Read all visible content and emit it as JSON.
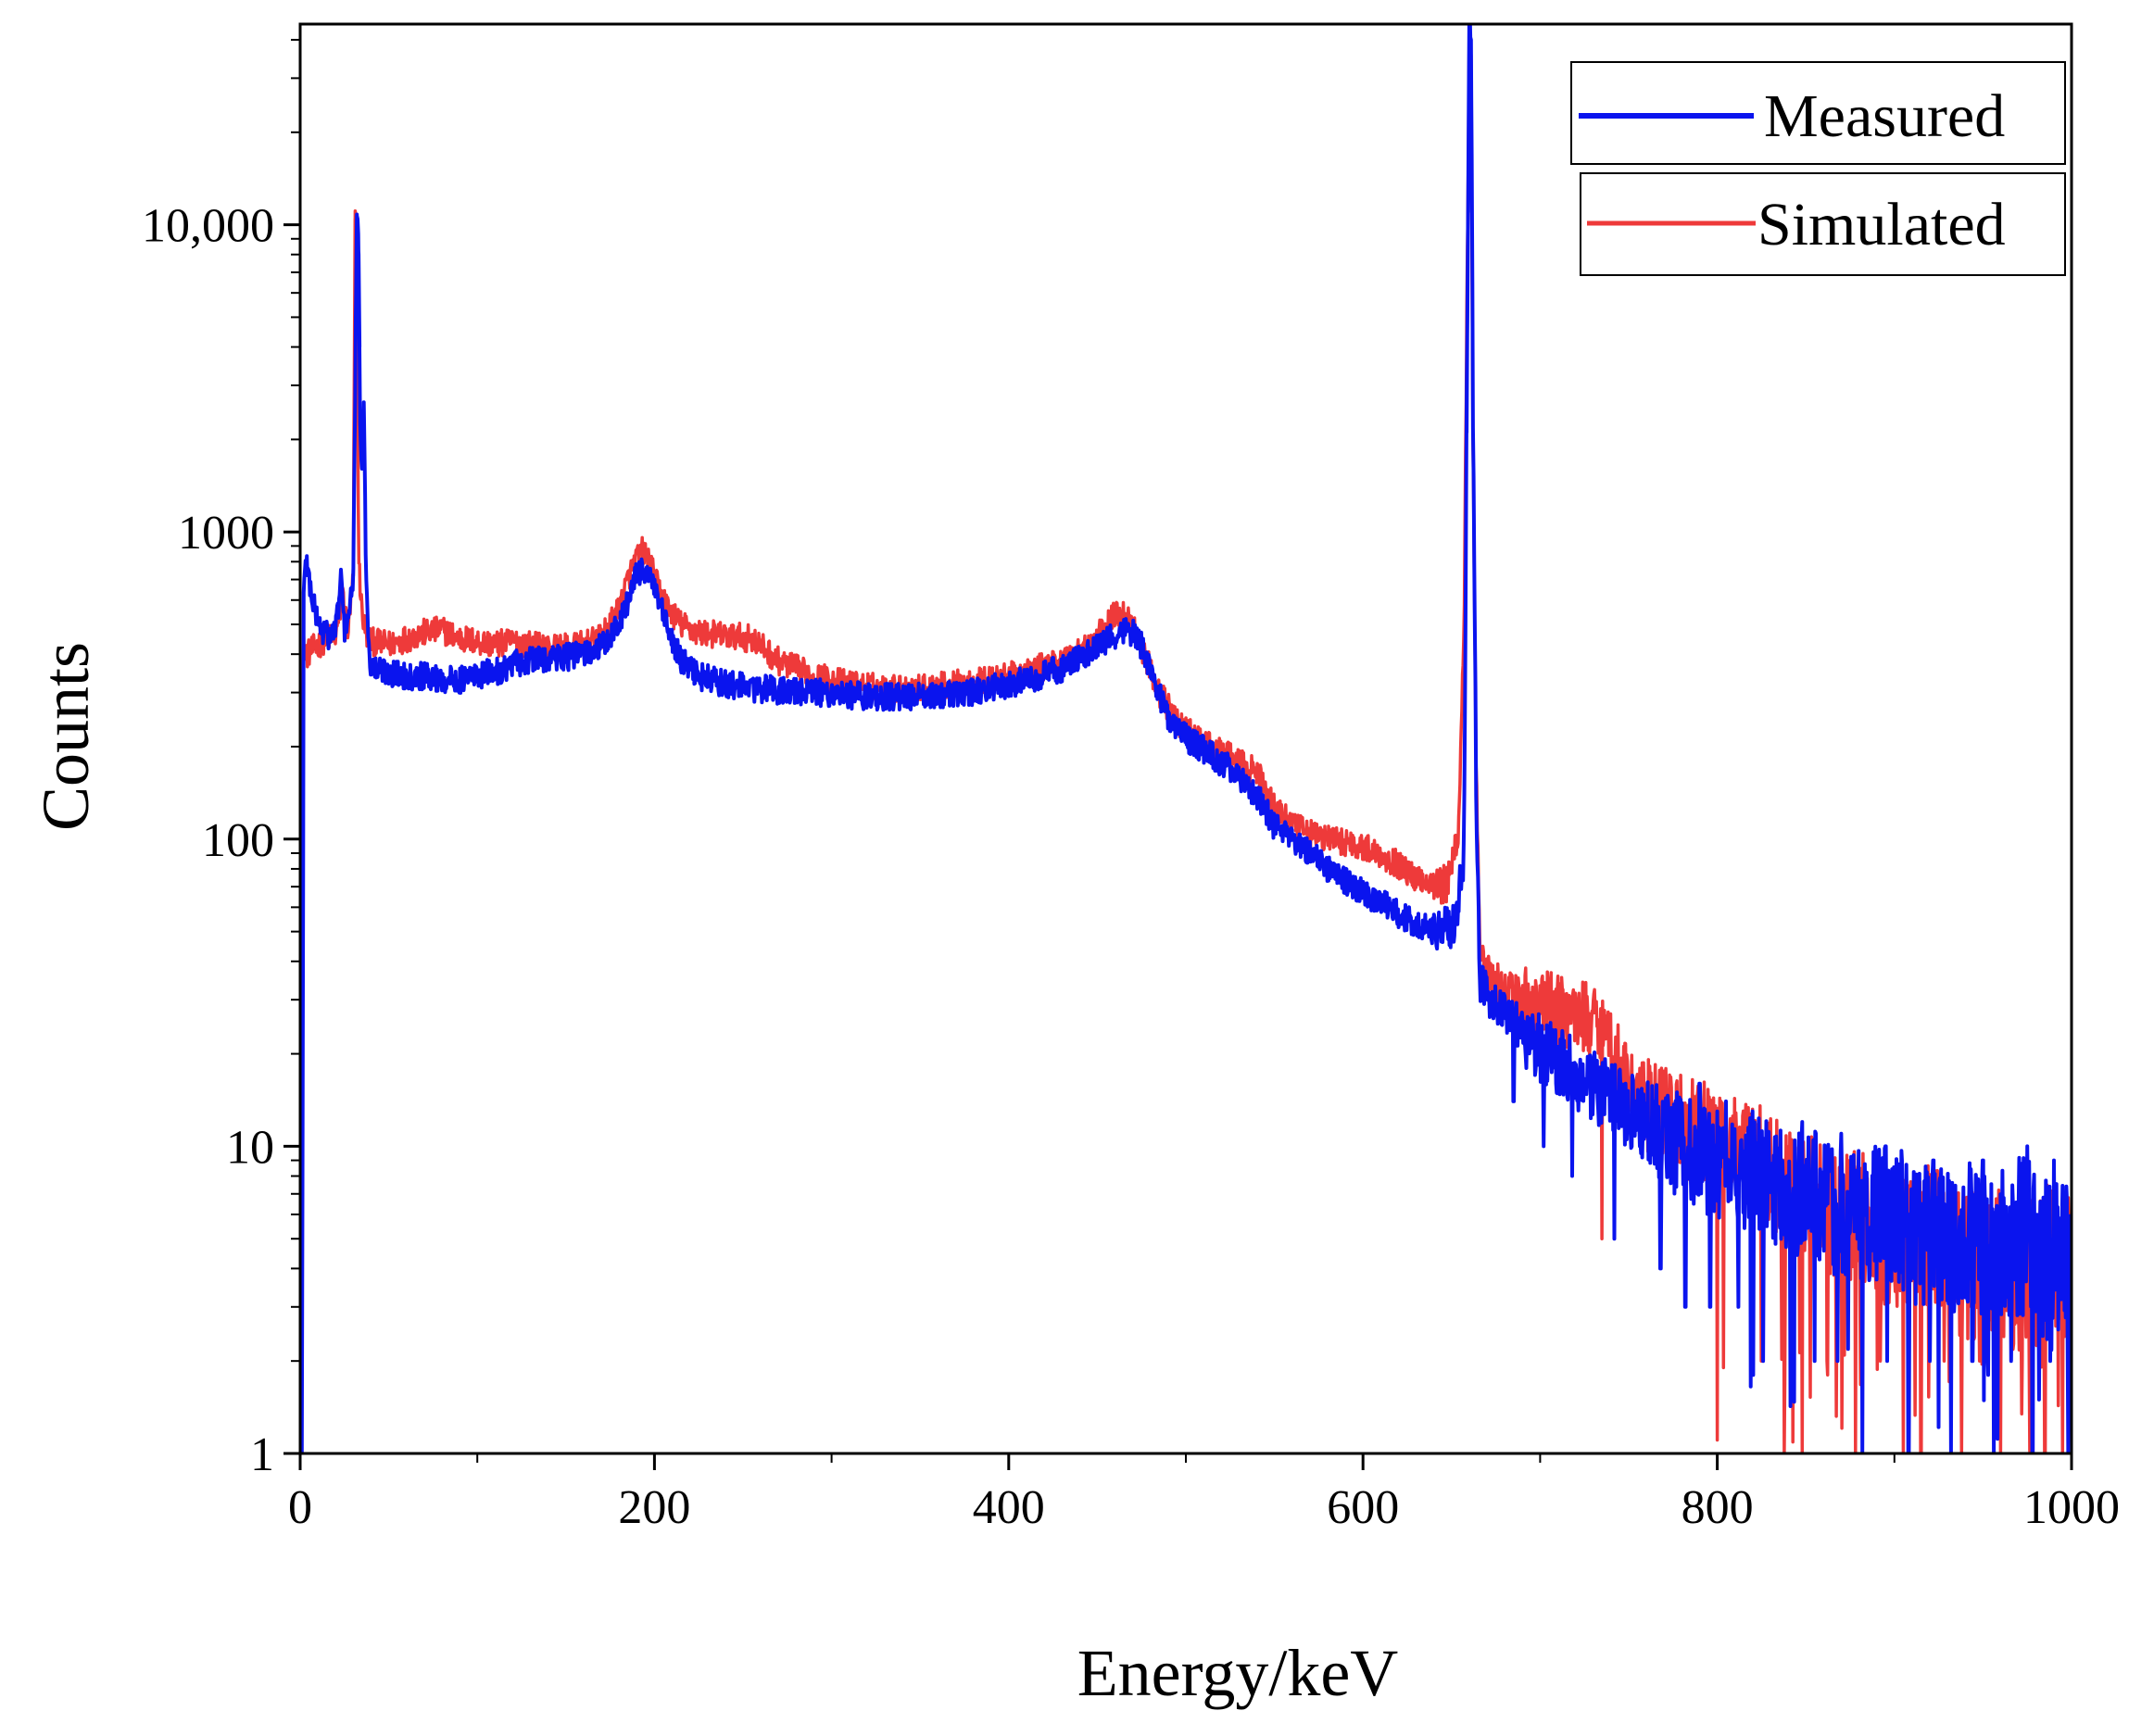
{
  "chart_data": {
    "type": "line",
    "title": "",
    "xlabel": "Energy/keV",
    "ylabel": "Counts",
    "xlim": [
      0,
      1000
    ],
    "ylim": [
      1,
      45000
    ],
    "yscale": "log",
    "grid": false,
    "legend_position": "top-right",
    "x_ticks": [
      {
        "value": 0,
        "label": "0"
      },
      {
        "value": 200,
        "label": "200"
      },
      {
        "value": 400,
        "label": "400"
      },
      {
        "value": 600,
        "label": "600"
      },
      {
        "value": 800,
        "label": "800"
      },
      {
        "value": 1000,
        "label": "1000"
      }
    ],
    "y_ticks": [
      {
        "value": 1,
        "label": "1"
      },
      {
        "value": 10,
        "label": "10"
      },
      {
        "value": 100,
        "label": "100"
      },
      {
        "value": 1000,
        "label": "1000"
      },
      {
        "value": 10000,
        "label": "10,000"
      }
    ],
    "series": [
      {
        "name": "Simulated",
        "color": "#ee3a3a",
        "points": [
          [
            1,
            160
          ],
          [
            2,
            420
          ],
          [
            4,
            400
          ],
          [
            8,
            420
          ],
          [
            15,
            450
          ],
          [
            20,
            460
          ],
          [
            24,
            620
          ],
          [
            27,
            470
          ],
          [
            30,
            700
          ],
          [
            31,
            10500
          ],
          [
            32,
            9500
          ],
          [
            33,
            800
          ],
          [
            35,
            540
          ],
          [
            37,
            470
          ],
          [
            40,
            440
          ],
          [
            50,
            430
          ],
          [
            60,
            450
          ],
          [
            70,
            470
          ],
          [
            80,
            480
          ],
          [
            90,
            450
          ],
          [
            100,
            440
          ],
          [
            110,
            430
          ],
          [
            120,
            440
          ],
          [
            130,
            430
          ],
          [
            140,
            420
          ],
          [
            150,
            420
          ],
          [
            160,
            430
          ],
          [
            170,
            450
          ],
          [
            180,
            560
          ],
          [
            185,
            700
          ],
          [
            190,
            820
          ],
          [
            193,
            870
          ],
          [
            197,
            800
          ],
          [
            202,
            660
          ],
          [
            208,
            560
          ],
          [
            215,
            500
          ],
          [
            225,
            470
          ],
          [
            240,
            460
          ],
          [
            255,
            450
          ],
          [
            270,
            380
          ],
          [
            290,
            340
          ],
          [
            310,
            320
          ],
          [
            330,
            310
          ],
          [
            350,
            310
          ],
          [
            370,
            320
          ],
          [
            390,
            330
          ],
          [
            410,
            350
          ],
          [
            430,
            380
          ],
          [
            445,
            430
          ],
          [
            455,
            490
          ],
          [
            460,
            540
          ],
          [
            464,
            550
          ],
          [
            468,
            520
          ],
          [
            472,
            470
          ],
          [
            478,
            380
          ],
          [
            485,
            300
          ],
          [
            495,
            240
          ],
          [
            510,
            205
          ],
          [
            525,
            185
          ],
          [
            540,
            165
          ],
          [
            550,
            130
          ],
          [
            560,
            110
          ],
          [
            575,
            102
          ],
          [
            590,
            98
          ],
          [
            605,
            92
          ],
          [
            618,
            84
          ],
          [
            628,
            76
          ],
          [
            640,
            72
          ],
          [
            648,
            70
          ],
          [
            654,
            110
          ],
          [
            657,
            500
          ],
          [
            659,
            8000
          ],
          [
            660,
            40000
          ],
          [
            661,
            36000
          ],
          [
            662,
            2000
          ],
          [
            664,
            150
          ],
          [
            666,
            40
          ],
          [
            672,
            35
          ],
          [
            690,
            30
          ],
          [
            705,
            28
          ],
          [
            720,
            27
          ],
          [
            735,
            25
          ],
          [
            750,
            16
          ],
          [
            760,
            14
          ],
          [
            775,
            12
          ],
          [
            790,
            11
          ],
          [
            805,
            10
          ],
          [
            820,
            9
          ],
          [
            835,
            8
          ],
          [
            850,
            7
          ],
          [
            865,
            6
          ],
          [
            880,
            6
          ],
          [
            895,
            5
          ],
          [
            910,
            5
          ],
          [
            925,
            5
          ],
          [
            940,
            4
          ],
          [
            955,
            4
          ],
          [
            970,
            4
          ],
          [
            985,
            4
          ],
          [
            1000,
            4
          ]
        ],
        "noise_dips": [
          [
            735,
            5
          ],
          [
            800,
            2
          ],
          [
            825,
            2
          ],
          [
            838,
            1
          ],
          [
            848,
            1
          ],
          [
            862,
            2
          ],
          [
            878,
            1
          ],
          [
            892,
            2
          ],
          [
            905,
            1
          ],
          [
            915,
            1
          ],
          [
            928,
            2
          ],
          [
            938,
            1
          ],
          [
            948,
            2
          ],
          [
            960,
            1
          ],
          [
            972,
            2
          ],
          [
            985,
            1
          ],
          [
            995,
            1
          ]
        ]
      },
      {
        "name": "Measured",
        "color": "#0a14ee",
        "points": [
          [
            1,
            1
          ],
          [
            2,
            600
          ],
          [
            3,
            850
          ],
          [
            5,
            700
          ],
          [
            8,
            560
          ],
          [
            12,
            480
          ],
          [
            16,
            460
          ],
          [
            20,
            480
          ],
          [
            22,
            600
          ],
          [
            23,
            720
          ],
          [
            25,
            480
          ],
          [
            28,
            560
          ],
          [
            30,
            700
          ],
          [
            32,
            10800
          ],
          [
            33,
            8000
          ],
          [
            34,
            2000
          ],
          [
            35,
            1400
          ],
          [
            36,
            2900
          ],
          [
            37,
            900
          ],
          [
            38,
            500
          ],
          [
            40,
            360
          ],
          [
            50,
            350
          ],
          [
            60,
            340
          ],
          [
            70,
            340
          ],
          [
            80,
            330
          ],
          [
            90,
            330
          ],
          [
            100,
            340
          ],
          [
            110,
            350
          ],
          [
            120,
            370
          ],
          [
            130,
            380
          ],
          [
            140,
            390
          ],
          [
            150,
            390
          ],
          [
            160,
            400
          ],
          [
            170,
            420
          ],
          [
            180,
            500
          ],
          [
            185,
            600
          ],
          [
            190,
            720
          ],
          [
            194,
            760
          ],
          [
            197,
            720
          ],
          [
            202,
            600
          ],
          [
            208,
            470
          ],
          [
            215,
            380
          ],
          [
            225,
            340
          ],
          [
            240,
            320
          ],
          [
            255,
            310
          ],
          [
            270,
            305
          ],
          [
            290,
            300
          ],
          [
            310,
            295
          ],
          [
            330,
            290
          ],
          [
            350,
            290
          ],
          [
            370,
            295
          ],
          [
            390,
            310
          ],
          [
            410,
            330
          ],
          [
            430,
            360
          ],
          [
            445,
            400
          ],
          [
            455,
            440
          ],
          [
            462,
            470
          ],
          [
            466,
            480
          ],
          [
            470,
            470
          ],
          [
            476,
            420
          ],
          [
            482,
            330
          ],
          [
            490,
            250
          ],
          [
            500,
            215
          ],
          [
            510,
            195
          ],
          [
            525,
            170
          ],
          [
            540,
            140
          ],
          [
            550,
            110
          ],
          [
            565,
            95
          ],
          [
            580,
            80
          ],
          [
            595,
            70
          ],
          [
            610,
            62
          ],
          [
            625,
            55
          ],
          [
            640,
            50
          ],
          [
            652,
            52
          ],
          [
            657,
            90
          ],
          [
            659,
            6000
          ],
          [
            660,
            42000
          ],
          [
            661,
            40000
          ],
          [
            662,
            3000
          ],
          [
            664,
            120
          ],
          [
            666,
            35
          ],
          [
            672,
            30
          ],
          [
            690,
            24
          ],
          [
            705,
            20
          ],
          [
            720,
            17
          ],
          [
            735,
            15
          ],
          [
            750,
            13
          ],
          [
            765,
            11
          ],
          [
            780,
            10
          ],
          [
            795,
            9
          ],
          [
            810,
            8
          ],
          [
            825,
            8
          ],
          [
            840,
            7
          ],
          [
            855,
            7
          ],
          [
            870,
            6
          ],
          [
            885,
            6
          ],
          [
            900,
            6
          ],
          [
            915,
            5
          ],
          [
            930,
            5
          ],
          [
            945,
            5
          ],
          [
            960,
            5
          ],
          [
            975,
            5
          ],
          [
            990,
            4
          ],
          [
            1000,
            4
          ]
        ],
        "noise_dips": [
          [
            685,
            14
          ],
          [
            702,
            10
          ],
          [
            718,
            8
          ],
          [
            742,
            5
          ],
          [
            752,
            2
          ],
          [
            768,
            4
          ],
          [
            782,
            3
          ],
          [
            796,
            3
          ],
          [
            812,
            3
          ],
          [
            826,
            2
          ],
          [
            842,
            2
          ],
          [
            855,
            2
          ],
          [
            868,
            2
          ],
          [
            882,
            1
          ],
          [
            896,
            2
          ],
          [
            908,
            1
          ],
          [
            920,
            2
          ],
          [
            932,
            1
          ],
          [
            944,
            2
          ],
          [
            956,
            1
          ],
          [
            966,
            2
          ],
          [
            978,
            1
          ],
          [
            988,
            2
          ],
          [
            998,
            1
          ]
        ],
        "noise_spikes": [
          [
            740,
            16
          ],
          [
            752,
            17
          ],
          [
            765,
            14
          ],
          [
            790,
            16
          ],
          [
            805,
            14
          ],
          [
            820,
            13
          ],
          [
            848,
            12
          ],
          [
            870,
            11
          ],
          [
            895,
            10
          ],
          [
            922,
            9
          ],
          [
            950,
            9
          ],
          [
            975,
            10
          ],
          [
            990,
            9
          ]
        ]
      }
    ]
  }
}
